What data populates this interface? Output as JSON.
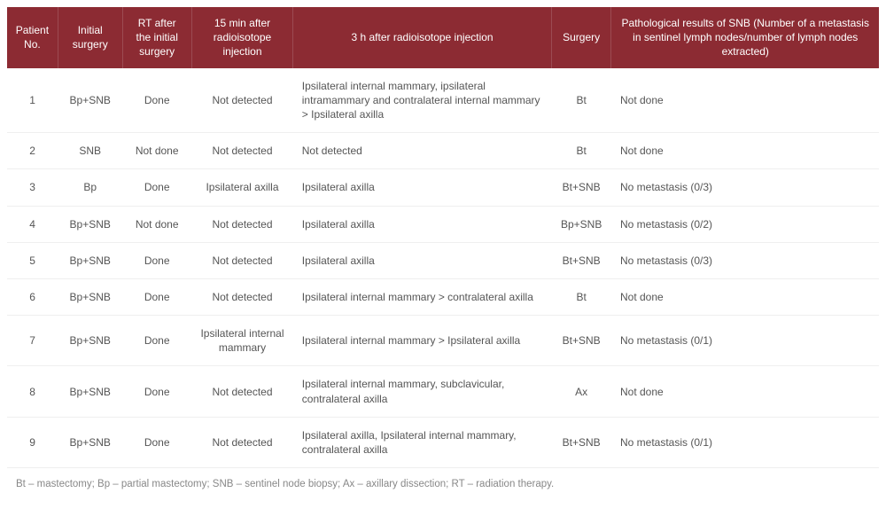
{
  "table": {
    "header_bg": "#8c2b33",
    "header_fg": "#ffffff",
    "row_border": "#efefef",
    "text_color": "#555555",
    "footnote_color": "#888888",
    "columns": [
      {
        "label": "Patient No.",
        "align": "center"
      },
      {
        "label": "Initial surgery",
        "align": "center"
      },
      {
        "label": "RT after the initial surgery",
        "align": "center"
      },
      {
        "label": "15 min after radioisotope injection",
        "align": "center"
      },
      {
        "label": "3 h after radioisotope injection",
        "align": "left"
      },
      {
        "label": "Surgery",
        "align": "center"
      },
      {
        "label": "Pathological results of SNB (Number of a metastasis in sentinel lymph nodes/number of lymph nodes extracted)",
        "align": "left"
      }
    ],
    "rows": [
      [
        "1",
        "Bp+SNB",
        "Done",
        "Not detected",
        "Ipsilateral internal mammary, ipsilateral intramammary and contralateral internal mammary > Ipsilateral axilla",
        "Bt",
        "Not done"
      ],
      [
        "2",
        "SNB",
        "Not done",
        "Not detected",
        "Not detected",
        "Bt",
        "Not done"
      ],
      [
        "3",
        "Bp",
        "Done",
        "Ipsilateral axilla",
        "Ipsilateral axilla",
        "Bt+SNB",
        "No metastasis (0/3)"
      ],
      [
        "4",
        "Bp+SNB",
        "Not done",
        "Not detected",
        "Ipsilateral axilla",
        "Bp+SNB",
        "No metastasis (0/2)"
      ],
      [
        "5",
        "Bp+SNB",
        "Done",
        "Not detected",
        "Ipsilateral axilla",
        "Bt+SNB",
        "No metastasis (0/3)"
      ],
      [
        "6",
        "Bp+SNB",
        "Done",
        "Not detected",
        "Ipsilateral internal mammary > contralateral axilla",
        "Bt",
        "Not done"
      ],
      [
        "7",
        "Bp+SNB",
        "Done",
        "Ipsilateral internal mammary",
        "Ipsilateral internal mammary > Ipsilateral axilla",
        "Bt+SNB",
        "No metastasis (0/1)"
      ],
      [
        "8",
        "Bp+SNB",
        "Done",
        "Not detected",
        "Ipsilateral internal mammary, subclavicular, contralateral axilla",
        "Ax",
        "Not done"
      ],
      [
        "9",
        "Bp+SNB",
        "Done",
        "Not detected",
        "Ipsilateral axilla, Ipsilateral internal mammary, contralateral axilla",
        "Bt+SNB",
        "No metastasis (0/1)"
      ]
    ],
    "footnote": "Bt – mastectomy; Bp – partial mastectomy; SNB – sentinel node biopsy; Ax – axillary dissection; RT – radiation therapy."
  }
}
